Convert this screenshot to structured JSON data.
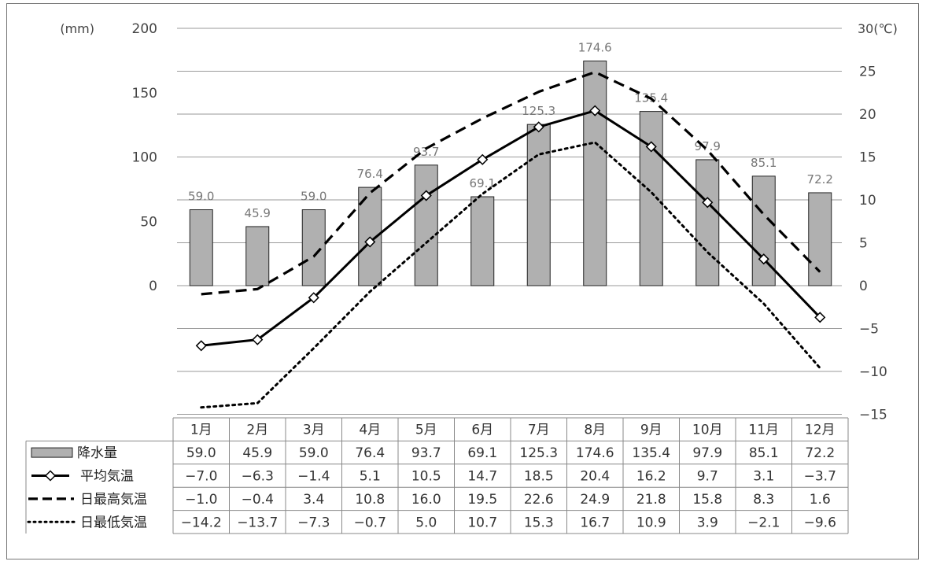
{
  "chart_data": {
    "type": "bar+line",
    "title": "",
    "categories": [
      "1月",
      "2月",
      "3月",
      "4月",
      "5月",
      "6月",
      "7月",
      "8月",
      "9月",
      "10月",
      "11月",
      "12月"
    ],
    "left_axis": {
      "unit": "(mm)",
      "ylim": [
        0,
        200
      ],
      "ticks": [
        "200",
        "150",
        "100",
        "50",
        "0"
      ]
    },
    "right_axis": {
      "unit": "30(℃)",
      "ylim": [
        -15,
        30
      ],
      "ticks": [
        "25",
        "20",
        "15",
        "10",
        "5",
        "0",
        "-5",
        "-10",
        "-15"
      ]
    },
    "grid": true,
    "series": [
      {
        "name": "降水量",
        "kind": "bar",
        "axis": "left",
        "color": "#b0b0b0",
        "values": [
          59.0,
          45.9,
          59.0,
          76.4,
          93.7,
          69.1,
          125.3,
          174.6,
          135.4,
          97.9,
          85.1,
          72.2
        ],
        "labels": [
          "59.0",
          "45.9",
          "59.0",
          "76.4",
          "93.7",
          "69.1",
          "125.3",
          "174.6",
          "135.4",
          "97.9",
          "85.1",
          "72.2"
        ]
      },
      {
        "name": "平均気温",
        "kind": "line",
        "style": "solid-diamond",
        "axis": "right",
        "values": [
          -7.0,
          -6.3,
          -1.4,
          5.1,
          10.5,
          14.7,
          18.5,
          20.4,
          16.2,
          9.7,
          3.1,
          -3.7
        ],
        "labels": [
          "-7.0",
          "-6.3",
          "-1.4",
          "5.1",
          "10.5",
          "14.7",
          "18.5",
          "20.4",
          "16.2",
          "9.7",
          "3.1",
          "-3.7"
        ]
      },
      {
        "name": "日最高気温",
        "kind": "line",
        "style": "dashed",
        "axis": "right",
        "values": [
          -1.0,
          -0.4,
          3.4,
          10.8,
          16.0,
          19.5,
          22.6,
          24.9,
          21.8,
          15.8,
          8.3,
          1.6
        ],
        "labels": [
          "-1.0",
          "-0.4",
          "3.4",
          "10.8",
          "16.0",
          "19.5",
          "22.6",
          "24.9",
          "21.8",
          "15.8",
          "8.3",
          "1.6"
        ]
      },
      {
        "name": "日最低気温",
        "kind": "line",
        "style": "dotted",
        "axis": "right",
        "values": [
          -14.2,
          -13.7,
          -7.3,
          -0.7,
          5.0,
          10.7,
          15.3,
          16.7,
          10.9,
          3.9,
          -2.1,
          -9.6
        ],
        "labels": [
          "-14.2",
          "-13.7",
          "-7.3",
          "-0.7",
          "5.0",
          "10.7",
          "15.3",
          "16.7",
          "10.9",
          "3.9",
          "-2.1",
          "-9.6"
        ]
      }
    ]
  }
}
